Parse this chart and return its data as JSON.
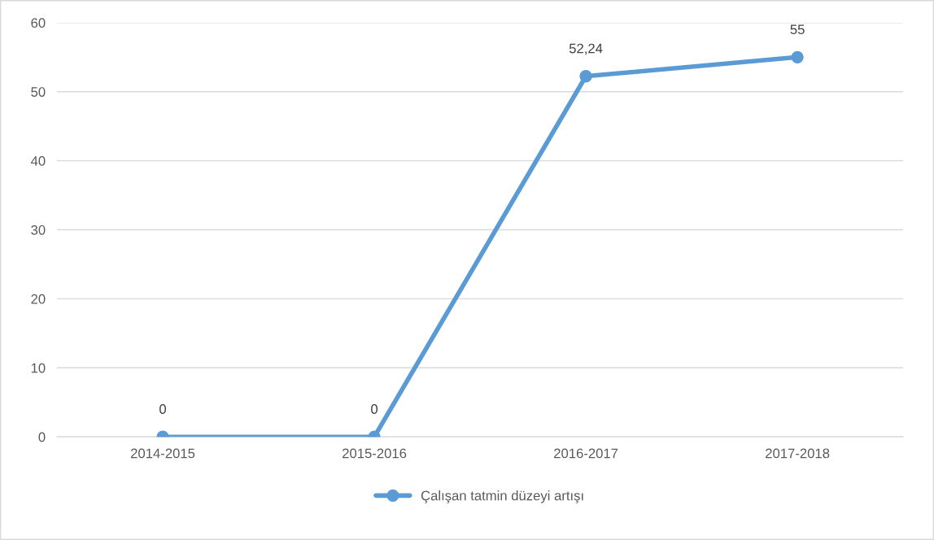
{
  "chart_data": {
    "type": "line",
    "categories": [
      "2014-2015",
      "2015-2016",
      "2016-2017",
      "2017-2018"
    ],
    "series": [
      {
        "name": "Çalışan tatmin düzeyi artışı",
        "color": "#5b9bd5",
        "values": [
          0,
          0,
          52.24,
          55
        ],
        "value_labels": [
          "0",
          "0",
          "52,24",
          "55"
        ]
      }
    ],
    "ylim": [
      0,
      60
    ],
    "yticks": [
      0,
      10,
      20,
      30,
      40,
      50,
      60
    ],
    "grid": "y",
    "legend": "bottom",
    "marker": "circle",
    "line_style": "solid"
  }
}
